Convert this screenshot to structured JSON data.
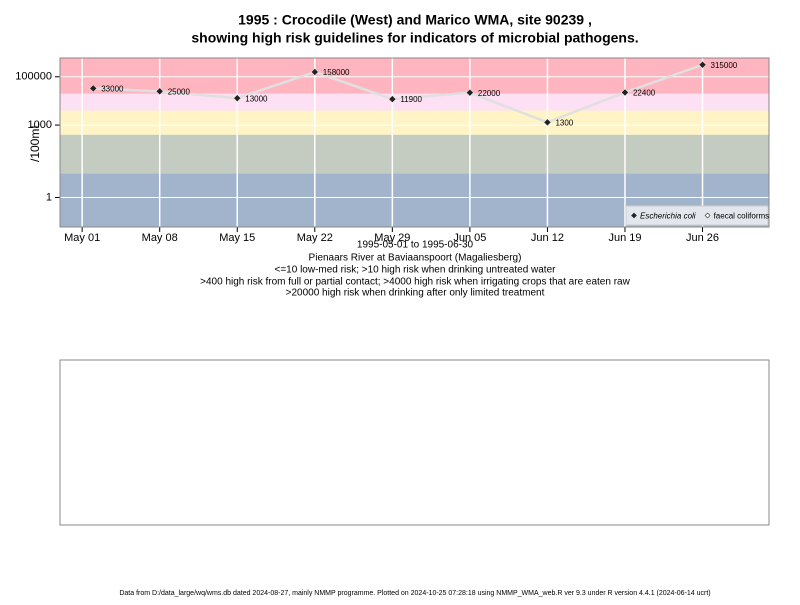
{
  "chart_data": {
    "type": "line",
    "title": "1995 : Crocodile (West) and Marico WMA, site 90239 ,",
    "subtitle": "showing high risk guidelines for indicators of microbial pathogens.",
    "x_label": "1995-05-01 to 1995-06-30",
    "notes": [
      "Pienaars River at Baviaanspoort (Magaliesberg)",
      "<=10 low-med risk; >10 high risk when drinking untreated water",
      ">400 high risk from full or partial contact; >4000 high risk when irrigating crops that are eaten raw",
      ">20000 high risk when drinking after only limited treatment"
    ],
    "y_label": "/100mL",
    "log_y": true,
    "grid": true,
    "legend": "bottom-right",
    "xlim": [
      "Apr 29",
      "Jul 02"
    ],
    "xticks": [
      "May 01",
      "May 08",
      "May 15",
      "May 22",
      "May 29",
      "Jun 05",
      "Jun 12",
      "Jun 19",
      "Jun 26"
    ],
    "ylim": [
      0.06,
      600000
    ],
    "yticks": [
      1,
      1000,
      100000
    ],
    "band_limits": [
      10,
      400,
      4000,
      20000
    ],
    "band_colors": [
      "#a2b3cc",
      "#c4cbc1",
      "#fff4c6",
      "#fde0f3",
      "#ffb5c0"
    ],
    "series": [
      {
        "name": "Escherichia coli",
        "color": "#222222",
        "line_color": "#e0e0e0",
        "x": [
          "May 02",
          "May 08",
          "May 15",
          "May 22",
          "May 29",
          "Jun 05",
          "Jun 12",
          "Jun 19",
          "Jun 26"
        ],
        "values": [
          33000,
          25000,
          13000,
          158000,
          11900,
          22000,
          1300,
          22400,
          315000
        ]
      },
      {
        "name": "faecal coliforms",
        "color": "#ffffff",
        "x": [],
        "values": []
      }
    ],
    "footer": "Data from D:/data_large/wq/wms.db dated 2024-08-27, mainly NMMP programme. Plotted on 2024-10-25 07:28:18 using NMMP_WMA_web.R ver 9.3 under R version 4.4.1 (2024-06-14 ucrt)"
  }
}
